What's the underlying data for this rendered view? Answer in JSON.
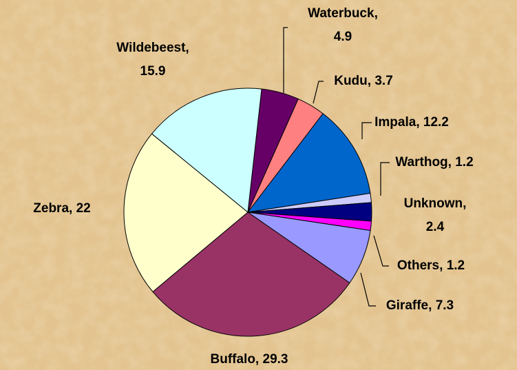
{
  "chart_data": {
    "type": "pie",
    "categories": [
      "Waterbuck,",
      "Kudu,",
      "Impala,",
      "Warthog,",
      "Unknown,",
      "Others,",
      "Giraffe,",
      "Buffalo,",
      "Zebra,",
      "Wildebeest,"
    ],
    "values": [
      4.9,
      3.7,
      12.2,
      1.2,
      2.4,
      1.2,
      7.3,
      29.3,
      22.0,
      15.9
    ],
    "colors": [
      "#660066",
      "#ff8080",
      "#0066cc",
      "#ccccff",
      "#000080",
      "#ff00ff",
      "#9999ff",
      "#993366",
      "#ffffcc",
      "#ccffff"
    ]
  }
}
